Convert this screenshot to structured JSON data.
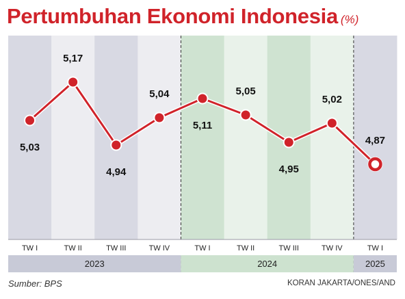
{
  "title": "Pertumbuhan Ekonomi Indonesia",
  "unit": "(%)",
  "source": "Sumber: BPS",
  "credit": "KORAN JAKARTA/ONES/AND",
  "chart_data": {
    "type": "line",
    "categories": [
      "TW I",
      "TW II",
      "TW III",
      "TW IV",
      "TW I",
      "TW II",
      "TW III",
      "TW IV",
      "TW I"
    ],
    "years": [
      {
        "label": "2023",
        "from": 0,
        "to": 3
      },
      {
        "label": "2024",
        "from": 4,
        "to": 7
      },
      {
        "label": "2025",
        "from": 8,
        "to": 8
      }
    ],
    "series": [
      {
        "values": [
          5.03,
          5.17,
          4.94,
          5.04,
          5.11,
          5.05,
          4.95,
          5.02,
          4.87
        ],
        "labels": [
          "5,03",
          "5,17",
          "4,94",
          "5,04",
          "5,11",
          "5,05",
          "4,95",
          "5,02",
          "4,87"
        ]
      }
    ],
    "label_positions": [
      "below",
      "above",
      "below",
      "above",
      "below",
      "above",
      "below",
      "above",
      "above"
    ],
    "line_color": "#d0232a",
    "colors": {
      "band_2023": [
        "#d8d9e3",
        "#ededf1"
      ],
      "band_2024": [
        "#cfe3d1",
        "#e9f2ea"
      ],
      "band_2025": "#d8d9e3",
      "year_bar_2023": "#c8cad7",
      "year_bar_2024": "#cde2cf",
      "year_bar_2025": "#c8cad7"
    }
  }
}
